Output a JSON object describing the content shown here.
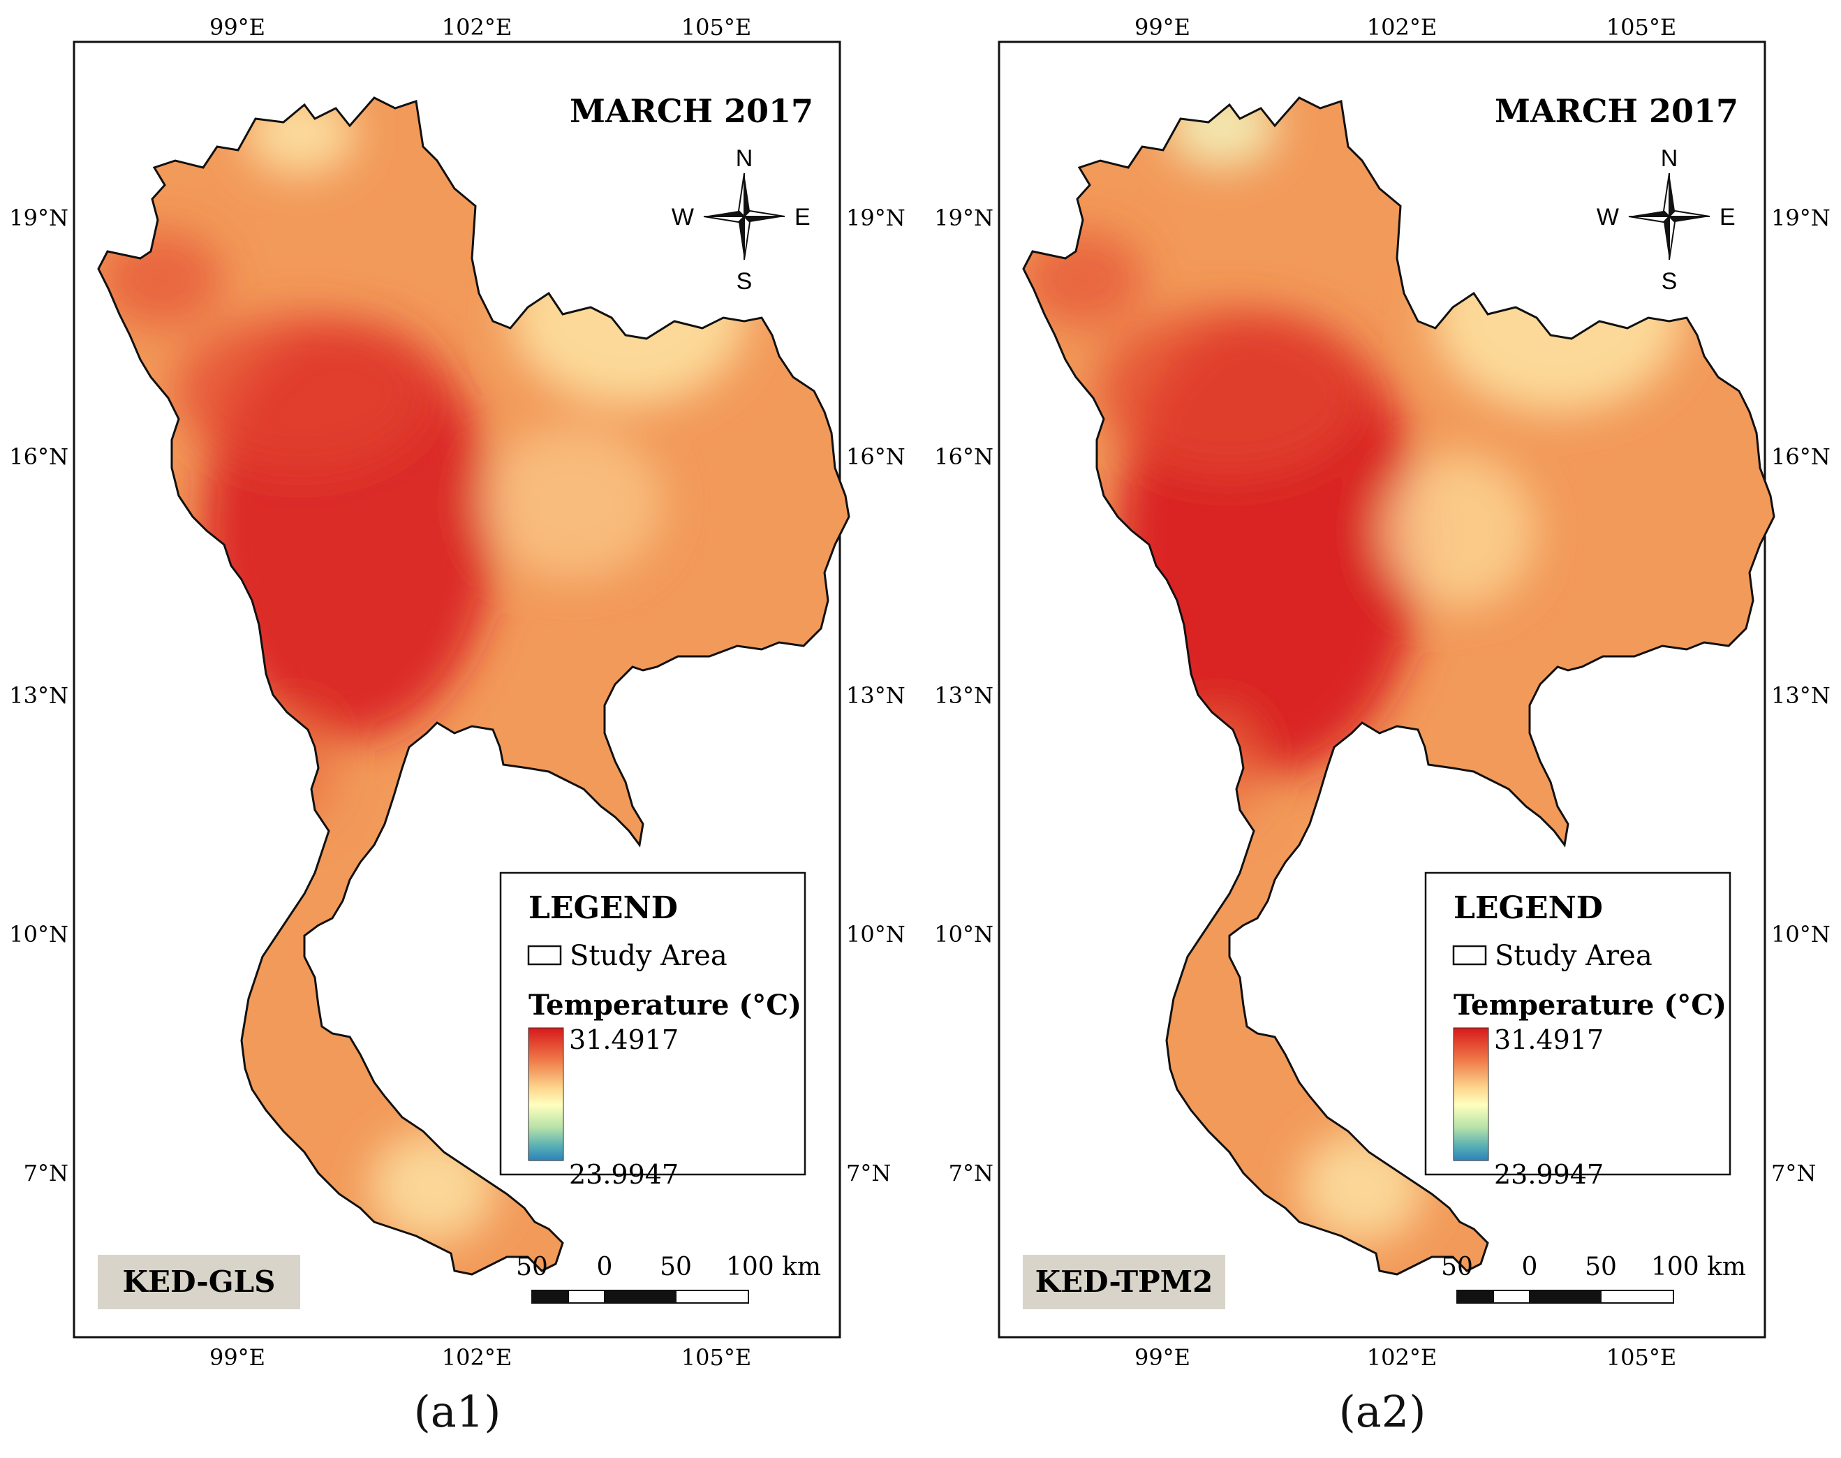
{
  "panels": [
    {
      "id": "a1",
      "title": "MARCH 2017",
      "method": "KED-GLS",
      "caption": "(a1)",
      "compass": {
        "n": "N",
        "s": "S",
        "e": "E",
        "w": "W"
      },
      "legend": {
        "heading": "LEGEND",
        "study_area_label": "Study Area",
        "temperature_label": "Temperature (°C)",
        "max_value": "31.4917",
        "min_value": "23.9947"
      },
      "scale_bar": {
        "labels": [
          "50",
          "0",
          "50",
          "100 km"
        ]
      }
    },
    {
      "id": "a2",
      "title": "MARCH 2017",
      "method": "KED-TPM2",
      "caption": "(a2)",
      "compass": {
        "n": "N",
        "s": "S",
        "e": "E",
        "w": "W"
      },
      "legend": {
        "heading": "LEGEND",
        "study_area_label": "Study Area",
        "temperature_label": "Temperature (°C)",
        "max_value": "31.4917",
        "min_value": "23.9947"
      },
      "scale_bar": {
        "labels": [
          "50",
          "0",
          "50",
          "100 km"
        ]
      }
    }
  ],
  "axes": {
    "lon_labels": [
      "99°E",
      "102°E",
      "105°E"
    ],
    "lat_labels": [
      "19°N",
      "16°N",
      "13°N",
      "10°N",
      "7°N"
    ]
  },
  "colors": {
    "color_ramp": [
      "#d7191c",
      "#f07c4a",
      "#fdd58c",
      "#ffffbf",
      "#b7e2a8",
      "#5fb3b3",
      "#2b83ba"
    ],
    "land_hot": "#d7191c",
    "land_warm": "#f08a4e",
    "land_mild": "#fcd08f",
    "method_box": "#d9d4c9"
  }
}
